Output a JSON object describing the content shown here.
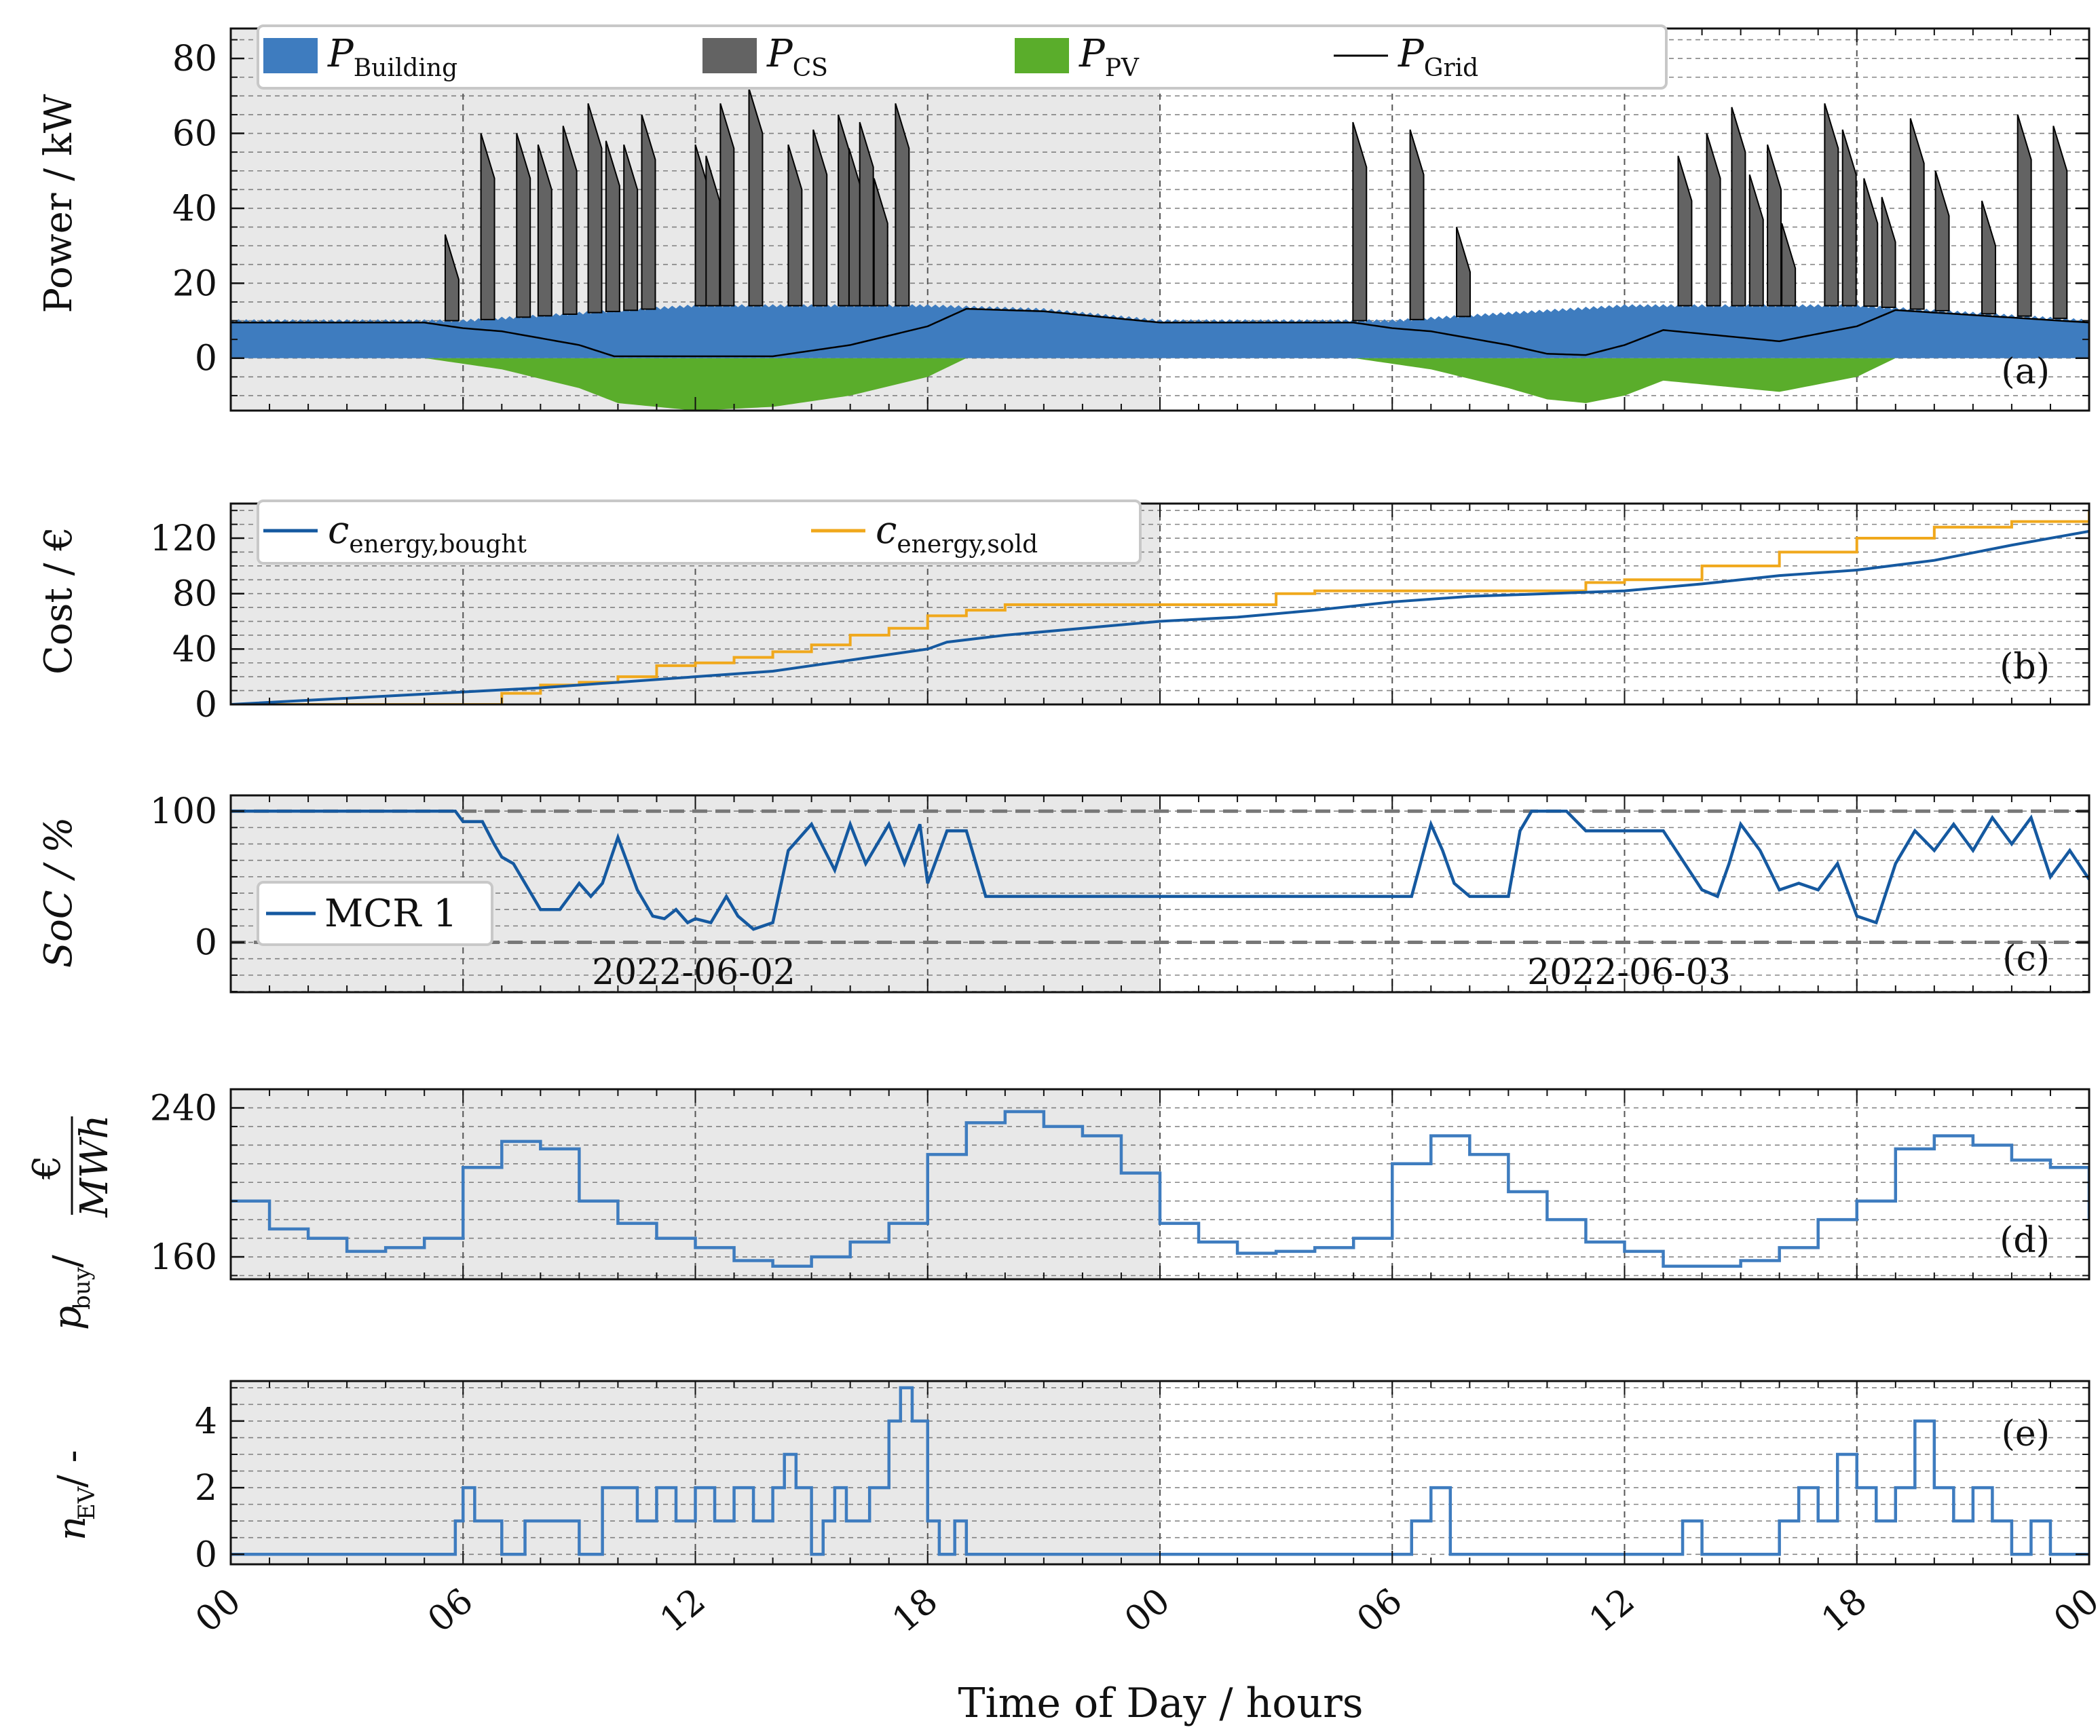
{
  "figure": {
    "x_axis_label": "Time of Day / hours",
    "x_tick_labels": [
      "00",
      "06",
      "12",
      "18",
      "00",
      "06",
      "12",
      "18",
      "00"
    ],
    "x_range_hours": [
      0,
      48
    ],
    "shaded_day_hours": [
      0,
      24
    ]
  },
  "colors": {
    "building": "#3e7cbf",
    "cs": "#636363",
    "pv": "#5aad2b",
    "grid": "#000000",
    "bought": "#1559a0",
    "sold": "#f0a81c",
    "soc": "#1559a0",
    "pbuy": "#3e7cbf",
    "nev": "#3e7cbf",
    "shade": "#e8e8e8"
  },
  "panels": {
    "a": {
      "label": "(a)",
      "ylabel": "Power / kW",
      "yticks": [
        "0",
        "20",
        "40",
        "60",
        "80"
      ],
      "legend": [
        {
          "base": "P",
          "sub": "Building"
        },
        {
          "base": "P",
          "sub": "CS"
        },
        {
          "base": "P",
          "sub": "PV"
        },
        {
          "base": "P",
          "sub": "Grid"
        }
      ]
    },
    "b": {
      "label": "(b)",
      "ylabel": "Cost / €",
      "yticks": [
        "0",
        "40",
        "80",
        "120"
      ],
      "legend": [
        {
          "base": "c",
          "sub": "energy,bought"
        },
        {
          "base": "c",
          "sub": "energy,sold"
        }
      ]
    },
    "c": {
      "label": "(c)",
      "ylabel": "SoC / %",
      "yticks": [
        "0",
        "100"
      ],
      "legend": [
        {
          "text": "MCR 1"
        }
      ],
      "dates": [
        "2022-06-02",
        "2022-06-03"
      ]
    },
    "d": {
      "label": "(d)",
      "ylabel_base": "p",
      "ylabel_sub": "buy",
      "ylabel_tail": " / ",
      "frac_num": "€",
      "frac_den": "MWh",
      "yticks": [
        "160",
        "240"
      ]
    },
    "e": {
      "label": "(e)",
      "ylabel_base": "n",
      "ylabel_sub": "EV",
      "ylabel_tail": " / -",
      "yticks": [
        "0",
        "2",
        "4"
      ]
    }
  },
  "chart_data": [
    {
      "type": "area",
      "panel": "a",
      "ylim": [
        -14,
        88
      ],
      "grid": true,
      "legend_position": "top",
      "series": [
        {
          "name": "P_Building",
          "x": [
            0,
            6,
            9,
            12,
            15,
            18,
            21,
            24,
            30,
            33,
            36,
            39,
            42,
            45,
            48
          ],
          "values": [
            10,
            10,
            12,
            14,
            14,
            14,
            13,
            10,
            10,
            12,
            14,
            14,
            14,
            12,
            10
          ]
        },
        {
          "name": "P_PV",
          "x": [
            0,
            5,
            7,
            9,
            10,
            12,
            14,
            16,
            18,
            19,
            24,
            29,
            31,
            33,
            34,
            35,
            36,
            37,
            38,
            40,
            42,
            43,
            48
          ],
          "values": [
            0,
            0,
            -3,
            -8,
            -12,
            -14,
            -13,
            -10,
            -5,
            0,
            0,
            0,
            -3,
            -8,
            -11,
            -12,
            -10,
            -6,
            -7,
            -9,
            -5,
            0,
            0
          ]
        },
        {
          "name": "P_CS",
          "peaks": [
            [
              6.0,
              33
            ],
            [
              7.0,
              60
            ],
            [
              8.0,
              60
            ],
            [
              8.6,
              57
            ],
            [
              9.3,
              62
            ],
            [
              10.0,
              68
            ],
            [
              10.5,
              58
            ],
            [
              11.0,
              57
            ],
            [
              11.5,
              65
            ],
            [
              13.0,
              57
            ],
            [
              13.3,
              54
            ],
            [
              13.7,
              68
            ],
            [
              14.5,
              72
            ],
            [
              15.6,
              57
            ],
            [
              16.3,
              61
            ],
            [
              17.0,
              65
            ],
            [
              17.3,
              56
            ],
            [
              17.6,
              63
            ],
            [
              18.0,
              48
            ],
            [
              18.6,
              68
            ],
            [
              31.4,
              63
            ],
            [
              33.0,
              61
            ],
            [
              34.3,
              35
            ],
            [
              40.5,
              54
            ],
            [
              41.3,
              60
            ],
            [
              42.0,
              67
            ],
            [
              42.5,
              49
            ],
            [
              43.0,
              57
            ],
            [
              43.4,
              36
            ],
            [
              44.6,
              68
            ],
            [
              45.1,
              61
            ],
            [
              45.7,
              48
            ],
            [
              46.2,
              43
            ],
            [
              47.0,
              64
            ],
            [
              47.7,
              50
            ],
            [
              49.0,
              42
            ],
            [
              50.0,
              65
            ],
            [
              51.0,
              62
            ],
            [
              52.0,
              45
            ]
          ]
        },
        {
          "name": "P_Grid",
          "note": "line"
        }
      ]
    },
    {
      "type": "line",
      "panel": "b",
      "ylim": [
        0,
        145
      ],
      "grid": true,
      "legend_position": "top-left",
      "series": [
        {
          "name": "c_energy,bought",
          "x": [
            0,
            6,
            8,
            10,
            12,
            14,
            16,
            18,
            18.5,
            20,
            22,
            24,
            26,
            28,
            30,
            32,
            34,
            36,
            38,
            40,
            42,
            44,
            46,
            48
          ],
          "values": [
            0,
            9,
            12,
            16,
            20,
            24,
            32,
            40,
            45,
            50,
            55,
            60,
            63,
            68,
            74,
            78,
            80,
            82,
            87,
            93,
            97,
            104,
            115,
            125
          ]
        },
        {
          "name": "c_energy,sold",
          "x": [
            0,
            6,
            7,
            8,
            9,
            10,
            11,
            12,
            13,
            14,
            15,
            16,
            17,
            18,
            19,
            20,
            24,
            26,
            27,
            28,
            30,
            32,
            34,
            35,
            36,
            38,
            40,
            42,
            44,
            46,
            48
          ],
          "values": [
            0,
            0,
            8,
            14,
            16,
            20,
            28,
            30,
            34,
            38,
            43,
            50,
            55,
            64,
            68,
            72,
            72,
            72,
            80,
            82,
            82,
            82,
            82,
            88,
            90,
            100,
            110,
            120,
            128,
            132,
            140
          ]
        }
      ]
    },
    {
      "type": "line",
      "panel": "c",
      "ylim": [
        -38,
        112
      ],
      "grid": true,
      "legend_position": "left",
      "series": [
        {
          "name": "MCR 1",
          "x": [
            0,
            5.8,
            6.0,
            6.5,
            6.8,
            7.0,
            7.3,
            7.6,
            8.0,
            8.5,
            9.0,
            9.3,
            9.6,
            10.0,
            10.5,
            10.9,
            11.2,
            11.5,
            11.8,
            12.0,
            12.4,
            12.8,
            13.1,
            13.5,
            14.0,
            14.4,
            15.0,
            15.6,
            16.0,
            16.4,
            17.0,
            17.4,
            17.8,
            18.0,
            18.5,
            19.0,
            19.5,
            20.0,
            21.0,
            24.0,
            30.5,
            31.0,
            31.3,
            31.6,
            32.0,
            32.5,
            33.0,
            33.3,
            33.6,
            34.0,
            34.5,
            35.0,
            35.4,
            36.0,
            37.0,
            38.0,
            38.4,
            38.7,
            39.0,
            39.5,
            40.0,
            40.5,
            41.0,
            41.5,
            42.0,
            42.5,
            43.0,
            43.5,
            44.0,
            44.5,
            45.0,
            45.5,
            46.0,
            46.5,
            47.0,
            47.5,
            48.0
          ],
          "values": [
            100,
            100,
            92,
            92,
            75,
            65,
            60,
            45,
            25,
            25,
            45,
            35,
            45,
            80,
            40,
            20,
            18,
            25,
            15,
            18,
            15,
            35,
            20,
            10,
            15,
            70,
            90,
            55,
            90,
            60,
            90,
            60,
            90,
            45,
            85,
            85,
            35,
            35,
            35,
            35,
            35,
            90,
            70,
            45,
            35,
            35,
            35,
            85,
            100,
            100,
            100,
            85,
            85,
            85,
            85,
            40,
            35,
            60,
            90,
            70,
            40,
            45,
            40,
            60,
            20,
            15,
            60,
            85,
            70,
            90,
            70,
            95,
            75,
            95,
            50,
            70,
            48
          ]
        }
      ]
    },
    {
      "type": "line",
      "panel": "d",
      "ylim": [
        148,
        250
      ],
      "grid": true,
      "series": [
        {
          "name": "p_buy",
          "step": true,
          "x": [
            0,
            1,
            2,
            3,
            4,
            5,
            6,
            7,
            8,
            9,
            10,
            11,
            12,
            13,
            14,
            15,
            16,
            17,
            18,
            19,
            20,
            21,
            22,
            23,
            24,
            25,
            26,
            27,
            28,
            29,
            30,
            31,
            32,
            33,
            34,
            35,
            36,
            37,
            38,
            39,
            40,
            41,
            42,
            43,
            44,
            45,
            46,
            47,
            48
          ],
          "values": [
            190,
            175,
            170,
            163,
            165,
            170,
            208,
            222,
            218,
            190,
            178,
            170,
            165,
            158,
            155,
            160,
            168,
            178,
            215,
            232,
            238,
            230,
            225,
            205,
            178,
            168,
            162,
            163,
            165,
            170,
            210,
            225,
            215,
            195,
            180,
            168,
            163,
            155,
            155,
            158,
            165,
            180,
            190,
            218,
            225,
            220,
            212,
            208,
            180
          ]
        }
      ]
    },
    {
      "type": "line",
      "panel": "e",
      "ylim": [
        -0.3,
        5.2
      ],
      "grid": true,
      "series": [
        {
          "name": "n_EV",
          "step": true,
          "x": [
            0,
            5.8,
            6.0,
            6.3,
            7.0,
            7.6,
            8.5,
            9.0,
            9.6,
            10.5,
            11.0,
            11.5,
            12.0,
            12.5,
            13.0,
            13.5,
            14.0,
            14.3,
            14.6,
            15.0,
            15.3,
            15.6,
            15.9,
            16.5,
            17.0,
            17.3,
            17.6,
            18.0,
            18.3,
            18.7,
            19.0,
            19.5,
            20.0,
            30.0,
            30.5,
            31.0,
            31.5,
            37.5,
            38.0,
            40.0,
            40.5,
            41.0,
            41.5,
            42.0,
            42.5,
            43.0,
            43.5,
            44.0,
            44.5,
            45.0,
            45.5,
            46.0,
            46.5,
            47.0,
            48.0
          ],
          "values": [
            0,
            1,
            2,
            1,
            0,
            1,
            1,
            0,
            2,
            1,
            2,
            1,
            2,
            1,
            2,
            1,
            2,
            3,
            2,
            0,
            1,
            2,
            1,
            2,
            4,
            5,
            4,
            1,
            0,
            1,
            0,
            0,
            0,
            0,
            1,
            2,
            0,
            1,
            0,
            1,
            2,
            1,
            3,
            2,
            1,
            2,
            4,
            2,
            1,
            2,
            1,
            0,
            1,
            0,
            0
          ]
        }
      ]
    }
  ]
}
